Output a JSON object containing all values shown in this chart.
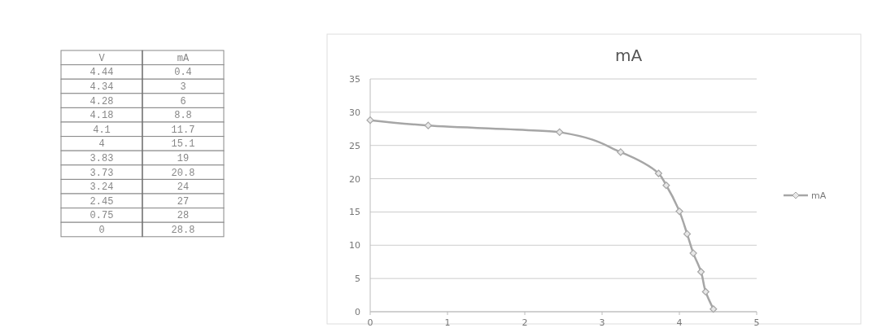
{
  "chart_data": [
    {
      "type": "other",
      "annotations": [
        "V",
        "mA",
        "4.44",
        "0.4",
        "4.34",
        "3",
        "4.28",
        "6",
        "4.18",
        "8.8",
        "4.1",
        "11.7",
        "4",
        "15.1",
        "3.83",
        "19",
        "3.73",
        "20.8",
        "3.24",
        "24",
        "2.45",
        "27",
        "0.75",
        "28",
        "0",
        "28.8"
      ]
    },
    {
      "type": "line",
      "title": "mA",
      "series": [
        {
          "name": "mA",
          "color": "#a6a6a6",
          "x": [
            4.44,
            4.34,
            4.28,
            4.18,
            4.1,
            4,
            3.83,
            3.73,
            3.24,
            2.45,
            0.75,
            0
          ],
          "values": [
            0.4,
            3,
            6,
            8.8,
            11.7,
            15.1,
            19,
            20.8,
            24,
            27,
            28,
            28.8
          ]
        }
      ],
      "xlim": [
        0,
        5
      ],
      "xticks": [
        0,
        1,
        2,
        3,
        4,
        5
      ],
      "ylim": [
        0,
        35
      ],
      "yticks": [
        0,
        5,
        10,
        15,
        20,
        25,
        30,
        35
      ],
      "grid": "y",
      "legend": "right",
      "marker": "diamond",
      "line_style": "solid"
    }
  ]
}
